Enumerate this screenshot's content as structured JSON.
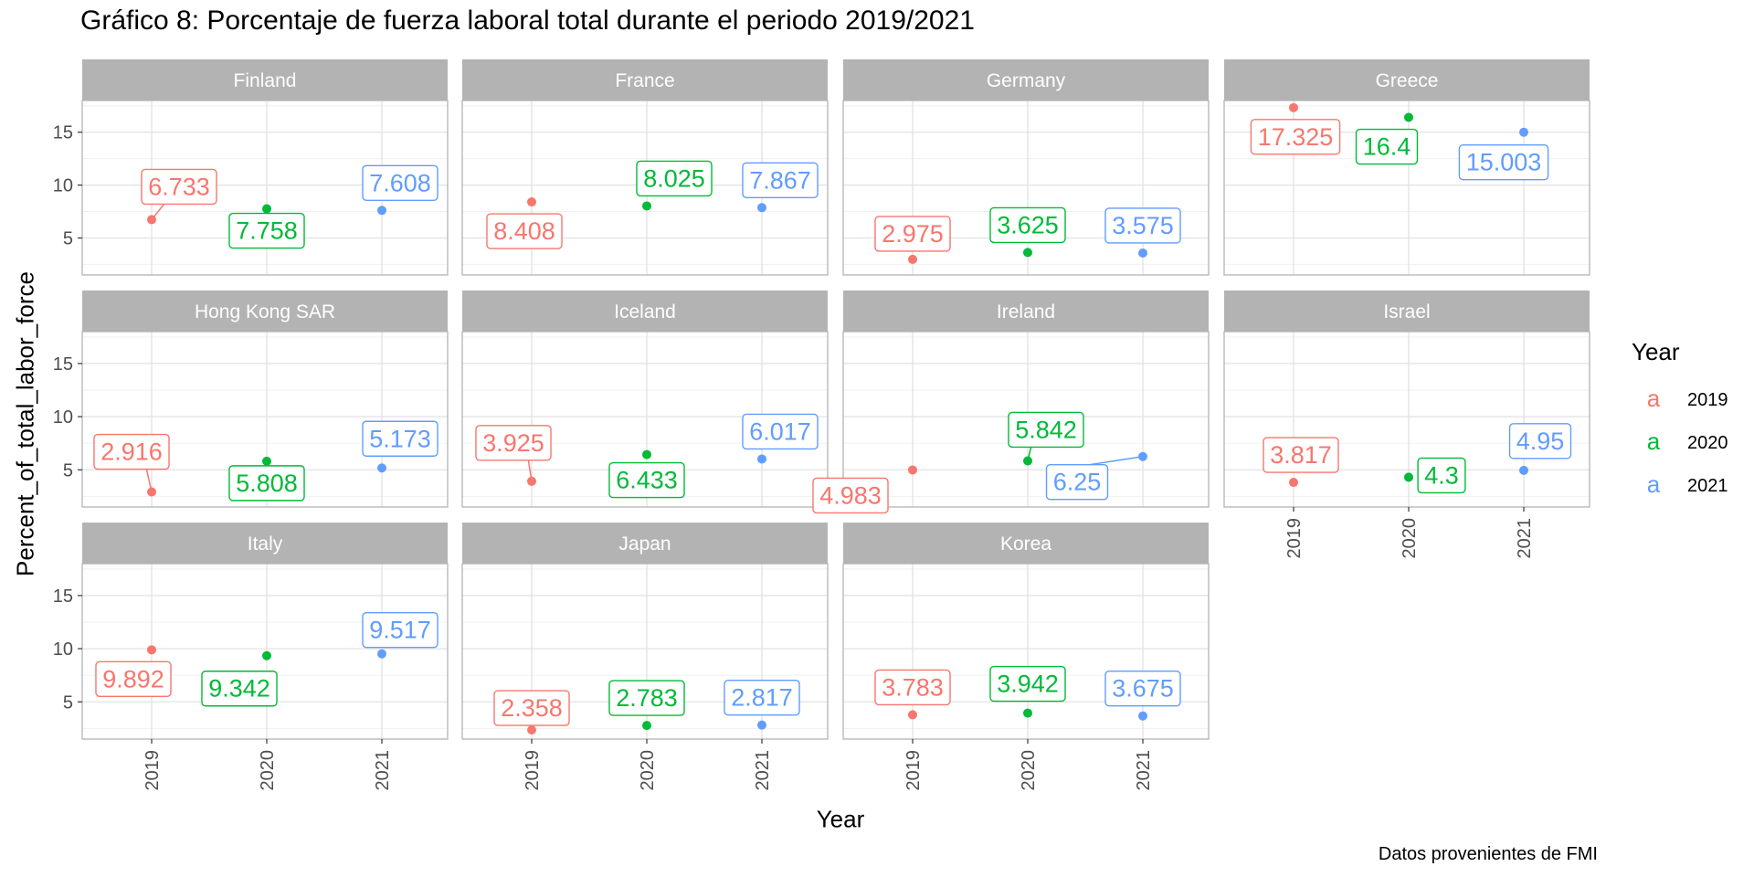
{
  "chart_data": {
    "type": "scatter",
    "title": "Gráfico 8: Porcentaje de fuerza laboral total durante el periodo 2019/2021",
    "xlabel": "Year",
    "ylabel": "Percent_of_total_labor_force",
    "caption": "Datos provenientes de FMI",
    "x": [
      "2019",
      "2020",
      "2021"
    ],
    "yticks": [
      "5",
      "10",
      "15"
    ],
    "ylim": [
      1.5,
      18
    ],
    "grid": true,
    "legend": {
      "title": "Year",
      "position": "right",
      "key_glyph": "a",
      "entries": [
        {
          "label": "2019",
          "color": "#F8766D"
        },
        {
          "label": "2020",
          "color": "#00BA38"
        },
        {
          "label": "2021",
          "color": "#619CFF"
        }
      ]
    },
    "panels": [
      {
        "name": "Finland",
        "values": [
          6.733,
          7.758,
          7.608
        ]
      },
      {
        "name": "France",
        "values": [
          8.408,
          8.025,
          7.867
        ]
      },
      {
        "name": "Germany",
        "values": [
          2.975,
          3.625,
          3.575
        ]
      },
      {
        "name": "Greece",
        "values": [
          17.325,
          16.4,
          15.003
        ]
      },
      {
        "name": "Hong Kong SAR",
        "values": [
          2.916,
          5.808,
          5.173
        ]
      },
      {
        "name": "Iceland",
        "values": [
          3.925,
          6.433,
          6.017
        ]
      },
      {
        "name": "Ireland",
        "values": [
          4.983,
          5.842,
          6.25
        ]
      },
      {
        "name": "Israel",
        "values": [
          3.817,
          4.3,
          4.95
        ]
      },
      {
        "name": "Italy",
        "values": [
          9.892,
          9.342,
          9.517
        ]
      },
      {
        "name": "Japan",
        "values": [
          2.358,
          2.783,
          2.817
        ]
      },
      {
        "name": "Korea",
        "values": [
          3.783,
          3.942,
          3.675
        ]
      }
    ]
  }
}
